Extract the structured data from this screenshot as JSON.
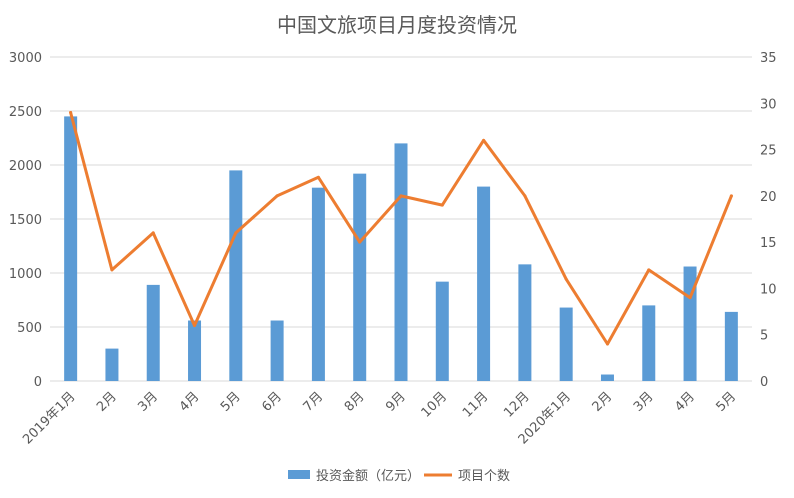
{
  "chart_data": {
    "type": "bar",
    "title": "中国文旅项目月度投资情况",
    "categories": [
      "2019年1月",
      "2月",
      "3月",
      "4月",
      "5月",
      "6月",
      "7月",
      "8月",
      "9月",
      "10月",
      "11月",
      "12月",
      "2020年1月",
      "2月",
      "3月",
      "4月",
      "5月"
    ],
    "series": [
      {
        "name": "投资金额（亿元）",
        "type": "bar",
        "axis": "left",
        "color": "#5B9BD5",
        "values": [
          2450,
          300,
          890,
          560,
          1950,
          560,
          1790,
          1920,
          2200,
          920,
          1800,
          1080,
          680,
          60,
          700,
          1060,
          640
        ]
      },
      {
        "name": "项目个数",
        "type": "line",
        "axis": "right",
        "color": "#ED7D31",
        "values": [
          29,
          12,
          16,
          6,
          16,
          20,
          22,
          15,
          20,
          19,
          26,
          20,
          11,
          4,
          12,
          9,
          20
        ]
      }
    ],
    "y_left": {
      "min": 0,
      "max": 3000,
      "ticks": [
        "0",
        "500",
        "1000",
        "1500",
        "2000",
        "2500",
        "3000"
      ]
    },
    "y_right": {
      "min": 0,
      "max": 35,
      "ticks": [
        "0",
        "5",
        "10",
        "15",
        "20",
        "25",
        "30",
        "35"
      ]
    },
    "grid": true,
    "legend_position": "bottom"
  }
}
